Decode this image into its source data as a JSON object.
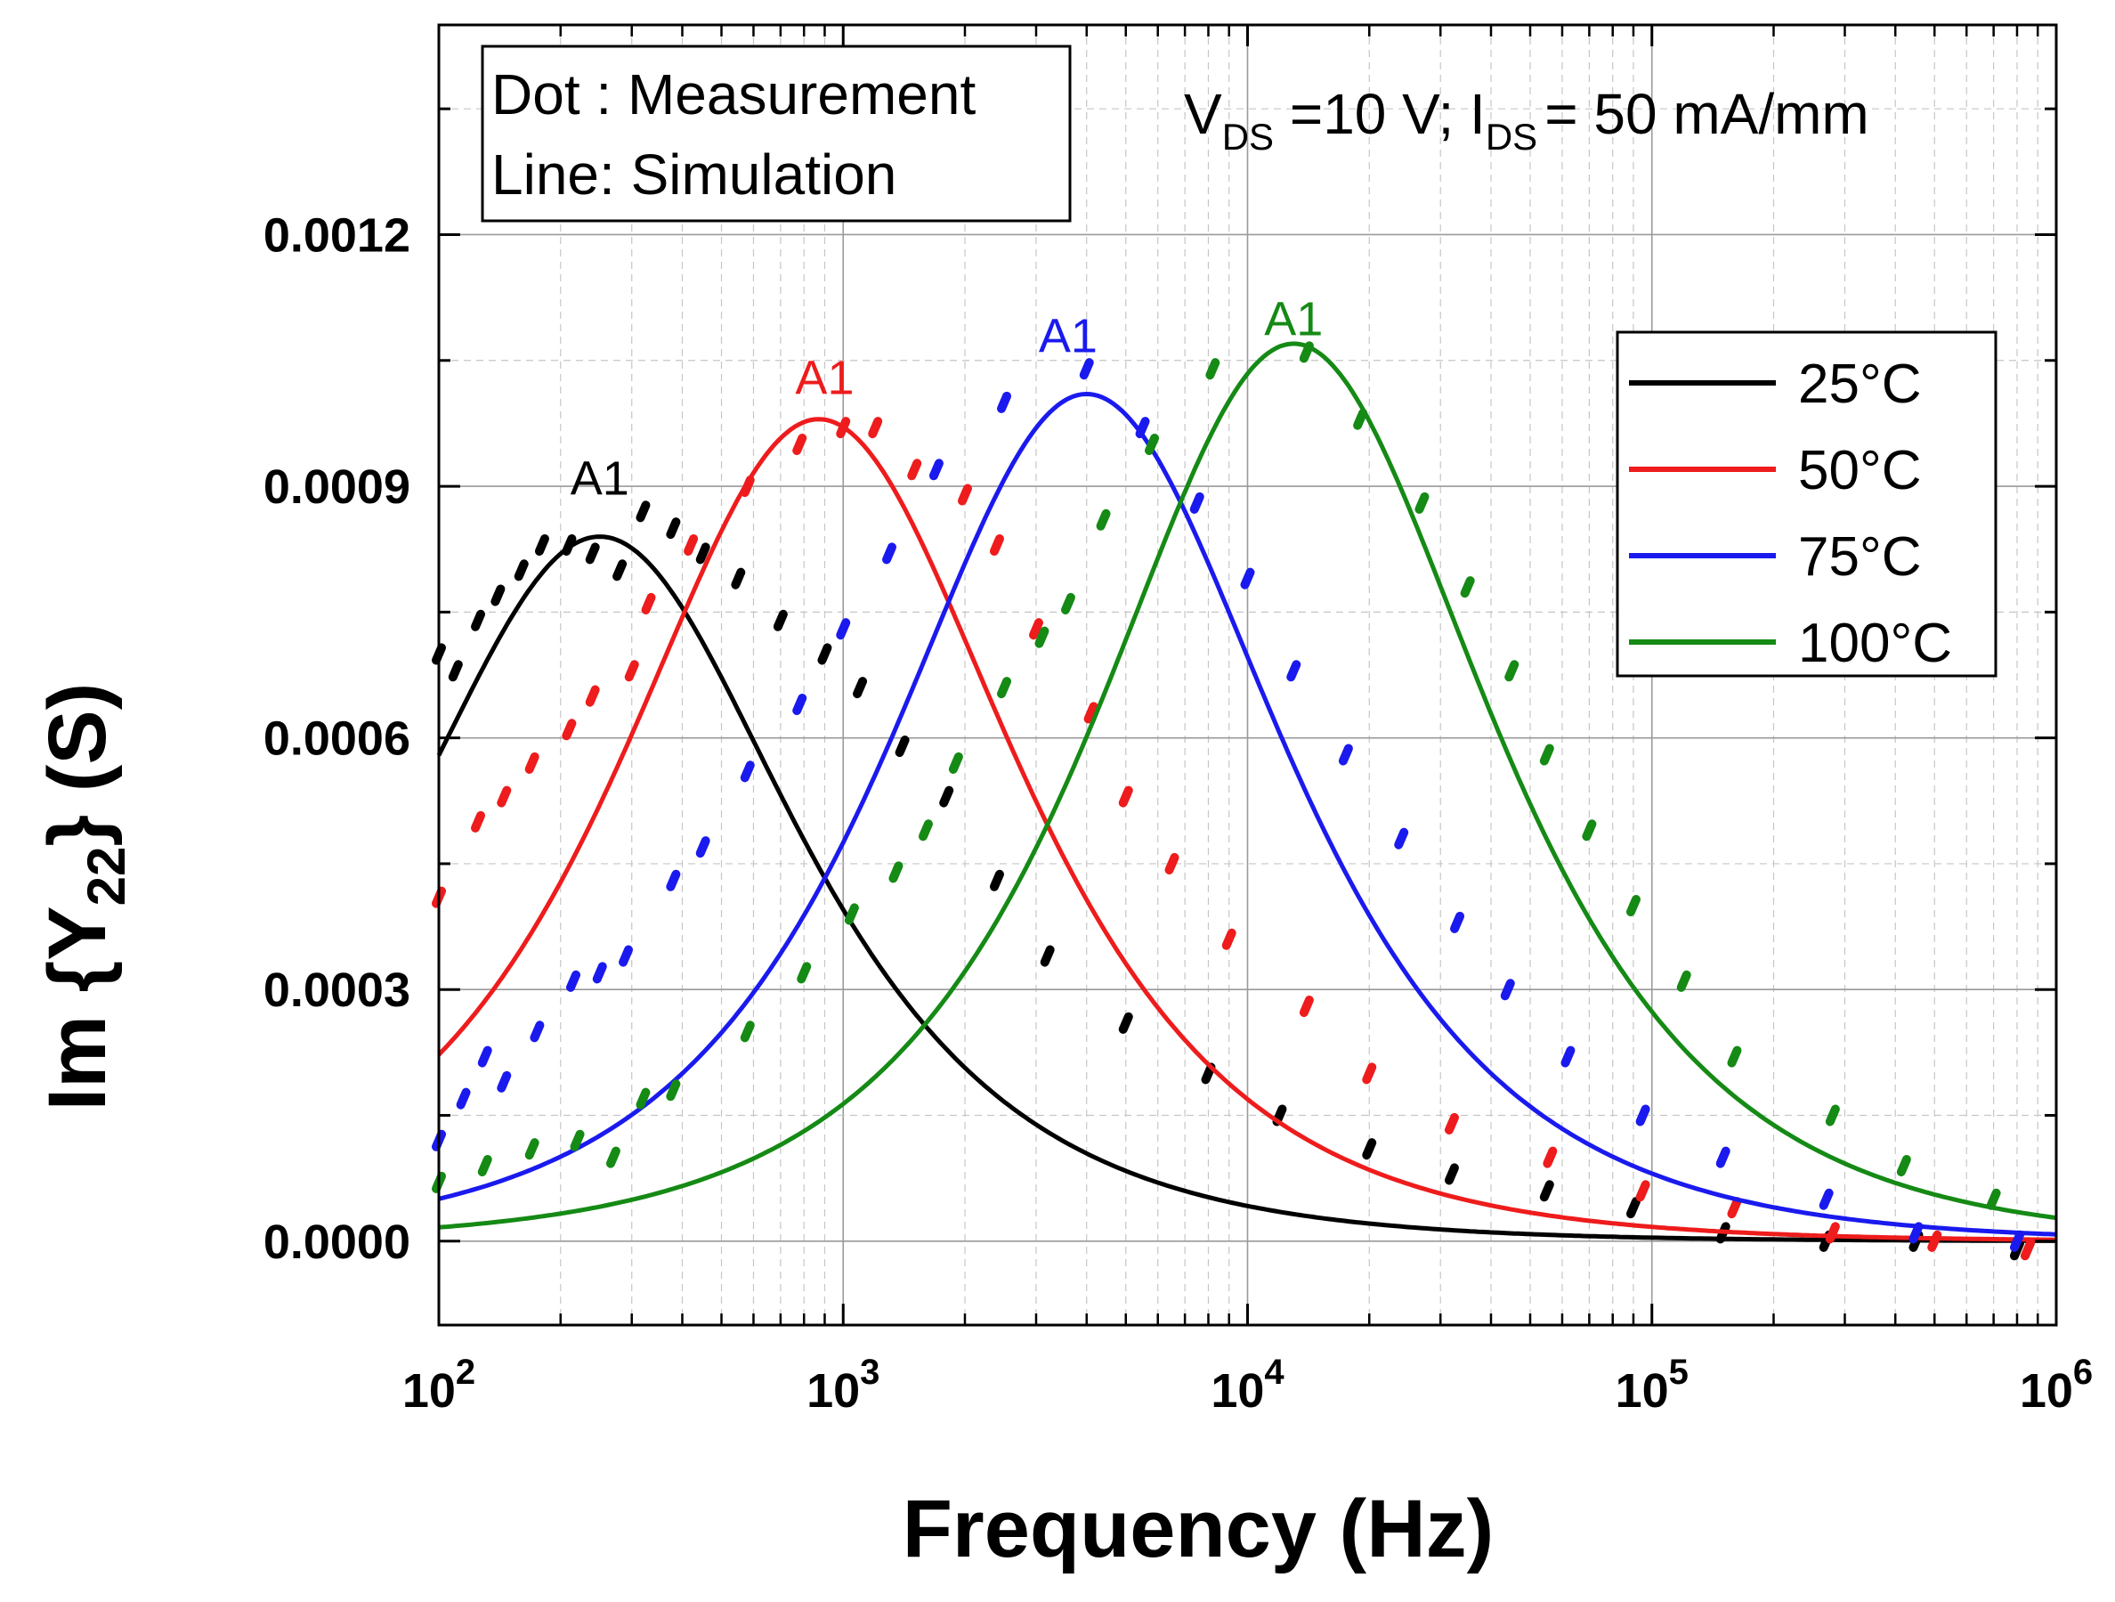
{
  "colors": {
    "25C": "#000000",
    "50C": "#ee1c1c",
    "75C": "#1a1aee",
    "100C": "#158a15"
  },
  "chart_data": {
    "type": "line",
    "title": "",
    "xlabel": "Frequency (Hz)",
    "ylabel_parts": {
      "pre": "Im {Y",
      "sub": "22",
      "post": "} (S)"
    },
    "xscale": "log",
    "xlim": [
      100,
      1000000
    ],
    "ylim": [
      -0.0001,
      0.00145
    ],
    "grid": true,
    "x_ticks": [
      {
        "base": "10",
        "exp": "2"
      },
      {
        "base": "10",
        "exp": "3"
      },
      {
        "base": "10",
        "exp": "4"
      },
      {
        "base": "10",
        "exp": "5"
      },
      {
        "base": "10",
        "exp": "6"
      }
    ],
    "y_ticks": [
      "0.0000",
      "0.0003",
      "0.0006",
      "0.0009",
      "0.0012"
    ],
    "y_tick_values": [
      0,
      0.0003,
      0.0006,
      0.0009,
      0.0012
    ],
    "note_box": {
      "line1": "Dot : Measurement",
      "line2": "Line: Simulation"
    },
    "conditions": {
      "v": "V",
      "v_sub": "DS",
      "v_rest": " =10 V; I",
      "i_sub": "DS",
      "i_rest": "= 50 mA/mm"
    },
    "legend_position": "right",
    "series": [
      {
        "name": "25°C",
        "key": "25C",
        "peak_label": "A1",
        "peak_freq": 250,
        "peak_value": 0.00084,
        "label_at": [
          250,
          0.00089
        ],
        "measured": [
          [
            100,
            0.0007
          ],
          [
            110,
            0.00068
          ],
          [
            125,
            0.00074
          ],
          [
            140,
            0.00077
          ],
          [
            160,
            0.0008
          ],
          [
            180,
            0.00083
          ],
          [
            210,
            0.00083
          ],
          [
            240,
            0.00082
          ],
          [
            280,
            0.0008
          ],
          [
            320,
            0.00087
          ],
          [
            380,
            0.00085
          ],
          [
            450,
            0.00082
          ],
          [
            550,
            0.00079
          ],
          [
            700,
            0.00074
          ],
          [
            900,
            0.0007
          ],
          [
            1100,
            0.00066
          ],
          [
            1400,
            0.00059
          ],
          [
            1800,
            0.00053
          ],
          [
            2400,
            0.00043
          ],
          [
            3200,
            0.00034
          ],
          [
            5000,
            0.00026
          ],
          [
            8000,
            0.0002
          ],
          [
            12000,
            0.00015
          ],
          [
            20000,
            0.00011
          ],
          [
            32000,
            8e-05
          ],
          [
            55000,
            6e-05
          ],
          [
            90000,
            4e-05
          ],
          [
            150000,
            1e-05
          ],
          [
            270000,
            0.0
          ],
          [
            450000,
            0.0
          ],
          [
            800000,
            -1e-05
          ]
        ]
      },
      {
        "name": "50°C",
        "key": "50C",
        "peak_label": "A1",
        "peak_freq": 870,
        "peak_value": 0.00098,
        "label_at": [
          900,
          0.00101
        ],
        "measured": [
          [
            100,
            0.00041
          ],
          [
            125,
            0.0005
          ],
          [
            145,
            0.00053
          ],
          [
            170,
            0.00057
          ],
          [
            210,
            0.00061
          ],
          [
            240,
            0.00065
          ],
          [
            300,
            0.00068
          ],
          [
            330,
            0.00076
          ],
          [
            420,
            0.00083
          ],
          [
            580,
            0.0009
          ],
          [
            780,
            0.00095
          ],
          [
            1000,
            0.00097
          ],
          [
            1200,
            0.00097
          ],
          [
            1500,
            0.00092
          ],
          [
            2000,
            0.00089
          ],
          [
            2400,
            0.00083
          ],
          [
            3000,
            0.00073
          ],
          [
            4100,
            0.00063
          ],
          [
            5000,
            0.00053
          ],
          [
            6500,
            0.00045
          ],
          [
            9000,
            0.00036
          ],
          [
            14000,
            0.00028
          ],
          [
            20000,
            0.0002
          ],
          [
            32000,
            0.00014
          ],
          [
            56000,
            0.0001
          ],
          [
            95000,
            6e-05
          ],
          [
            160000,
            4e-05
          ],
          [
            280000,
            1e-05
          ],
          [
            500000,
            0.0
          ],
          [
            850000,
            -1e-05
          ]
        ]
      },
      {
        "name": "75°C",
        "key": "75C",
        "peak_label": "A1",
        "peak_freq": 4000,
        "peak_value": 0.00101,
        "label_at": [
          3600,
          0.00106
        ],
        "measured": [
          [
            100,
            0.00012
          ],
          [
            115,
            0.00017
          ],
          [
            130,
            0.00022
          ],
          [
            145,
            0.00019
          ],
          [
            175,
            0.00025
          ],
          [
            215,
            0.00031
          ],
          [
            250,
            0.00032
          ],
          [
            290,
            0.00034
          ],
          [
            380,
            0.00043
          ],
          [
            450,
            0.00047
          ],
          [
            580,
            0.00056
          ],
          [
            780,
            0.00064
          ],
          [
            1000,
            0.00073
          ],
          [
            1300,
            0.00082
          ],
          [
            1700,
            0.00092
          ],
          [
            2500,
            0.001
          ],
          [
            4000,
            0.00104
          ],
          [
            5500,
            0.00097
          ],
          [
            7500,
            0.00088
          ],
          [
            10000,
            0.00079
          ],
          [
            13000,
            0.00068
          ],
          [
            17500,
            0.00058
          ],
          [
            24000,
            0.00048
          ],
          [
            33000,
            0.00038
          ],
          [
            44000,
            0.0003
          ],
          [
            62000,
            0.00022
          ],
          [
            95000,
            0.00015
          ],
          [
            150000,
            0.0001
          ],
          [
            270000,
            5e-05
          ],
          [
            450000,
            1e-05
          ],
          [
            800000,
            0.0
          ]
        ]
      },
      {
        "name": "100°C",
        "key": "100C",
        "peak_label": "A1",
        "peak_freq": 13000,
        "peak_value": 0.00107,
        "label_at": [
          13000,
          0.00108
        ],
        "measured": [
          [
            100,
            7e-05
          ],
          [
            130,
            9e-05
          ],
          [
            170,
            0.00011
          ],
          [
            220,
            0.00012
          ],
          [
            270,
            0.0001
          ],
          [
            320,
            0.00017
          ],
          [
            380,
            0.00018
          ],
          [
            580,
            0.00025
          ],
          [
            800,
            0.00032
          ],
          [
            1050,
            0.00039
          ],
          [
            1350,
            0.00044
          ],
          [
            1600,
            0.00049
          ],
          [
            1900,
            0.00057
          ],
          [
            2500,
            0.00066
          ],
          [
            3100,
            0.00072
          ],
          [
            3600,
            0.00076
          ],
          [
            4400,
            0.00086
          ],
          [
            5800,
            0.00095
          ],
          [
            8200,
            0.00104
          ],
          [
            14000,
            0.00106
          ],
          [
            19000,
            0.00098
          ],
          [
            27000,
            0.00088
          ],
          [
            35000,
            0.00078
          ],
          [
            45000,
            0.00068
          ],
          [
            55000,
            0.00058
          ],
          [
            70000,
            0.00049
          ],
          [
            90000,
            0.0004
          ],
          [
            120000,
            0.00031
          ],
          [
            160000,
            0.00022
          ],
          [
            280000,
            0.00015
          ],
          [
            420000,
            9e-05
          ],
          [
            700000,
            5e-05
          ]
        ]
      }
    ]
  }
}
